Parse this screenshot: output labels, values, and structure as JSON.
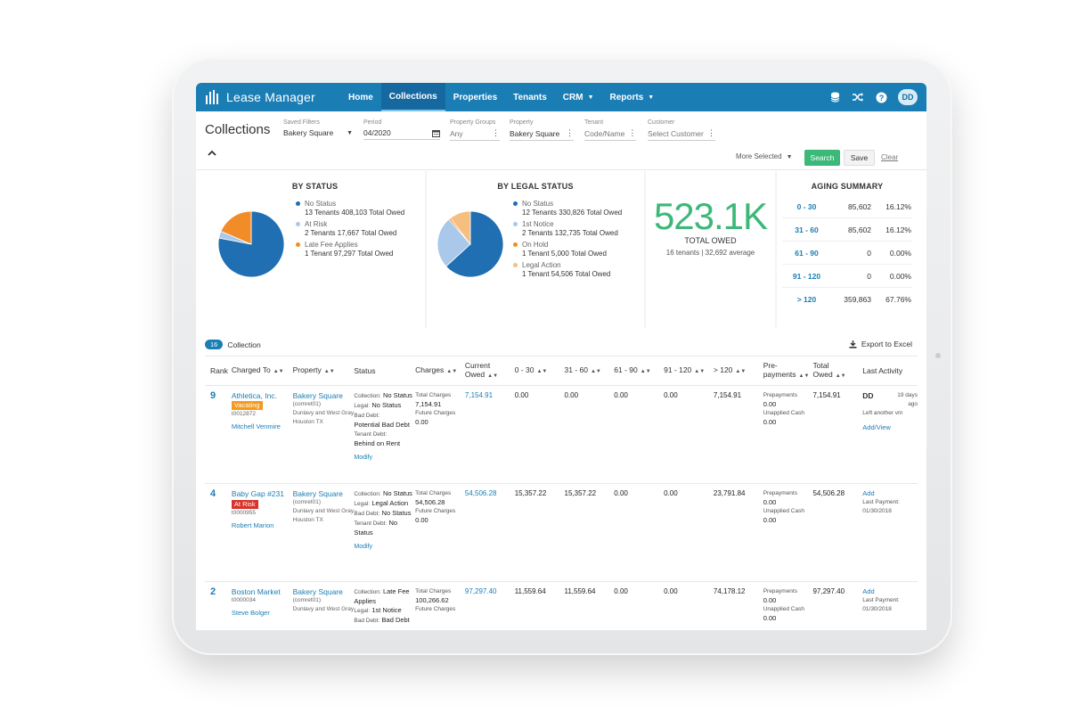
{
  "nav": {
    "brand": "Lease Manager",
    "links": [
      {
        "label": "Home"
      },
      {
        "label": "Collections"
      },
      {
        "label": "Properties"
      },
      {
        "label": "Tenants"
      },
      {
        "label": "CRM"
      },
      {
        "label": "Reports"
      }
    ],
    "user_initials": "DD"
  },
  "page": {
    "title": "Collections"
  },
  "filters": {
    "saved_filters": {
      "label": "Saved Filters",
      "value": "Bakery Square"
    },
    "period": {
      "label": "Period",
      "value": "04/2020"
    },
    "property_groups": {
      "label": "Property Groups",
      "value": "Any"
    },
    "property": {
      "label": "Property",
      "value": "Bakery Square"
    },
    "tenant": {
      "label": "Tenant",
      "value": "Code/Name"
    },
    "customer": {
      "label": "Customer",
      "value": "Select Customer"
    },
    "more_selected": "More Selected",
    "search_label": "Search",
    "save_label": "Save",
    "clear_label": "Clear"
  },
  "by_status": {
    "title": "BY STATUS",
    "items": [
      {
        "name": "No Status",
        "value": "13 Tenants 408,103 Total Owed",
        "amount": 408103,
        "color": "#1f6fb2"
      },
      {
        "name": "At Risk",
        "value": "2 Tenants 17,667 Total Owed",
        "amount": 17667,
        "color": "#a9c8ea"
      },
      {
        "name": "Late Fee Applies",
        "value": "1 Tenant 97,297 Total Owed",
        "amount": 97297,
        "color": "#f28c28"
      }
    ]
  },
  "by_legal_status": {
    "title": "BY LEGAL STATUS",
    "items": [
      {
        "name": "No Status",
        "value": "12 Tenants 330,826 Total Owed",
        "amount": 330826,
        "color": "#1f6fb2"
      },
      {
        "name": "1st Notice",
        "value": "2 Tenants 132,735 Total Owed",
        "amount": 132735,
        "color": "#a9c8ea"
      },
      {
        "name": "On Hold",
        "value": "1 Tenant 5,000 Total Owed",
        "amount": 5000,
        "color": "#f28c28"
      },
      {
        "name": "Legal Action",
        "value": "1 Tenant 54,506 Total Owed",
        "amount": 54506,
        "color": "#f6be7f"
      }
    ]
  },
  "total_owed": {
    "amount": "523.1K",
    "label": "TOTAL OWED",
    "sub": "16 tenants | 32,692 average"
  },
  "aging_summary": {
    "title": "AGING SUMMARY",
    "rows": [
      {
        "range": "0 - 30",
        "amount": "85,602",
        "pct": "16.12%"
      },
      {
        "range": "31 - 60",
        "amount": "85,602",
        "pct": "16.12%"
      },
      {
        "range": "61 - 90",
        "amount": "0",
        "pct": "0.00%"
      },
      {
        "range": "91 - 120",
        "amount": "0",
        "pct": "0.00%"
      },
      {
        "range": "> 120",
        "amount": "359,863",
        "pct": "67.76%"
      }
    ]
  },
  "collection": {
    "count": "16",
    "label": "Collection",
    "export_label": "Export to Excel"
  },
  "table": {
    "headers": {
      "rank": "Rank",
      "charged_to": "Charged To",
      "property": "Property",
      "status": "Status",
      "charges": "Charges",
      "current_owed": "Current Owed",
      "d0_30": "0 - 30",
      "d31_60": "31 - 60",
      "d61_90": "61 - 90",
      "d91_120": "91 - 120",
      "d120": "> 120",
      "prepayments": "Pre-payments",
      "total_owed": "Total Owed",
      "last_activity": "Last Activity"
    },
    "rows": [
      {
        "rank": "9",
        "tenant": "Athletica, Inc.",
        "tag": "Vacating",
        "code": "t0012872",
        "contact": "Mitchell Venmire",
        "property": "Bakery Square",
        "prop_code": "(comret01)",
        "prop_addr1": "Dunlavy and West Gray",
        "prop_city": "Houston TX",
        "collection_label": "Collection:",
        "collection": "No Status",
        "legal_label": "Legal:",
        "legal": "No Status",
        "bad_debt_label": "Bad Debt:",
        "bad_debt": "Potential Bad Debt",
        "tenant_debt_label": "Tenant Debt:",
        "tenant_debt": "Behind on Rent",
        "modify": "Modify",
        "total_charges_label": "Total Charges",
        "total_charges": "7,154.91",
        "future_charges_label": "Future Charges",
        "future_charges": "0.00",
        "current_owed": "7,154.91",
        "d0_30": "0.00",
        "d31_60": "0.00",
        "d61_90": "0.00",
        "d91_120": "0.00",
        "d120": "7,154.91",
        "prepay_label": "Prepayments",
        "prepay": "0.00",
        "unapplied_label": "Unapplied Cash",
        "unapplied": "0.00",
        "total_owed": "7,154.91",
        "activity_user": "DD",
        "activity_time": "19 days ago",
        "activity_text": "Left another vm",
        "activity_action": "Add/View"
      },
      {
        "rank": "4",
        "tenant": "Baby Gap #231",
        "tag": "At Risk",
        "code": "t0000955",
        "contact": "Robert Marion",
        "property": "Bakery Square",
        "prop_code": "(comret01)",
        "prop_addr1": "Dunlavy and West Gray",
        "prop_city": "Houston TX",
        "collection_label": "Collection:",
        "collection": "No Status",
        "legal_label": "Legal:",
        "legal": "Legal Action",
        "bad_debt_label": "Bad Debt:",
        "bad_debt": "No Status",
        "tenant_debt_label": "Tenant Debt:",
        "tenant_debt": "No Status",
        "modify": "Modify",
        "total_charges_label": "Total Charges",
        "total_charges": "54,506.28",
        "future_charges_label": "Future Charges",
        "future_charges": "0.00",
        "current_owed": "54,506.28",
        "d0_30": "15,357.22",
        "d31_60": "15,357.22",
        "d61_90": "0.00",
        "d91_120": "0.00",
        "d120": "23,791.84",
        "prepay_label": "Prepayments",
        "prepay": "0.00",
        "unapplied_label": "Unapplied Cash",
        "unapplied": "0.00",
        "total_owed": "54,506.28",
        "activity_action": "Add",
        "last_payment_label": "Last Payment:",
        "last_payment": "01/30/2018"
      },
      {
        "rank": "2",
        "tenant": "Boston Market",
        "code": "t0000034",
        "contact": "Steve Bolger",
        "property": "Bakery Square",
        "prop_code": "(comret01)",
        "prop_addr1": "Dunlavy and West Gray",
        "collection_label": "Collection:",
        "collection": "Late Fee Applies",
        "legal_label": "Legal:",
        "legal": "1st Notice",
        "bad_debt_label": "Bad Debt:",
        "bad_debt": "Bad Debt",
        "total_charges_label": "Total Charges",
        "total_charges": "100,266.62",
        "future_charges_label": "Future Charges",
        "current_owed": "97,297.40",
        "d0_30": "11,559.64",
        "d31_60": "11,559.64",
        "d61_90": "0.00",
        "d91_120": "0.00",
        "d120": "74,178.12",
        "prepay_label": "Prepayments",
        "prepay": "0.00",
        "unapplied_label": "Unapplied Cash",
        "unapplied": "0.00",
        "total_owed": "97,297.40",
        "activity_action": "Add",
        "last_payment_label": "Last Payment:",
        "last_payment": "01/30/2018"
      }
    ]
  }
}
